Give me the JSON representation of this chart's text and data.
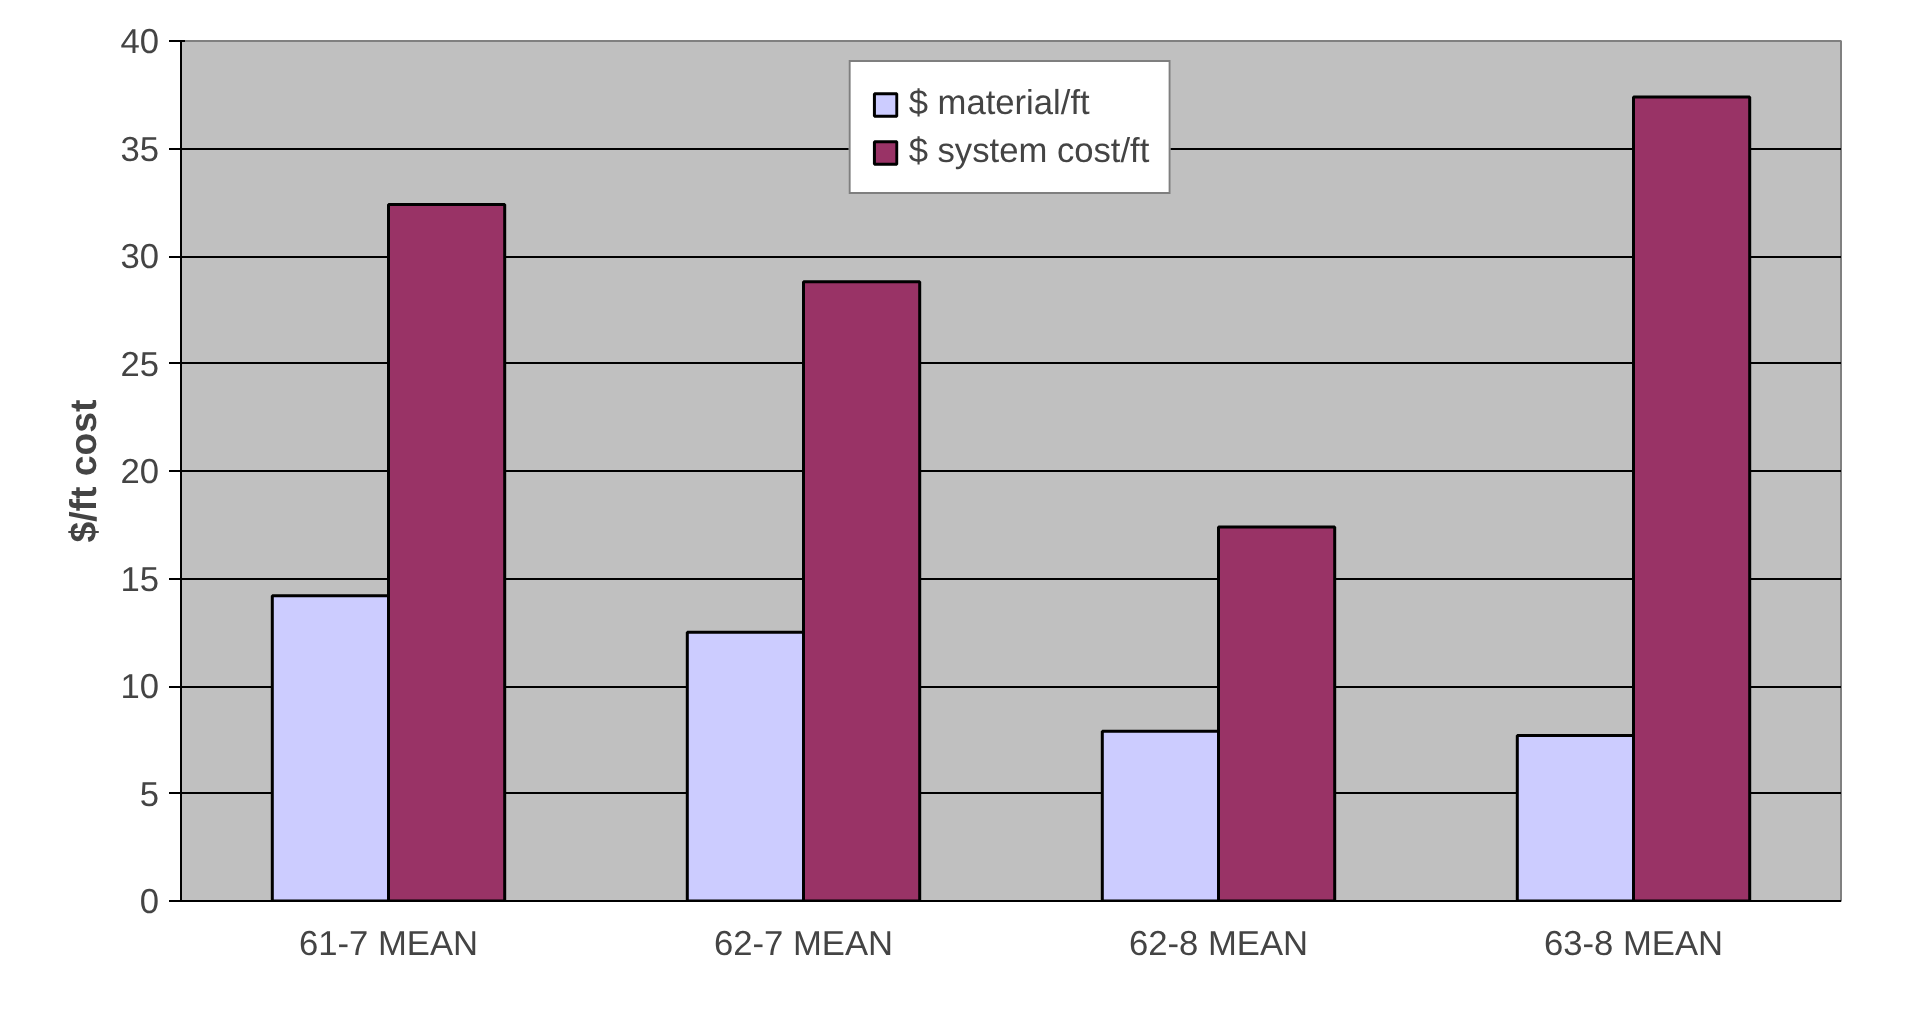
{
  "chart_data": {
    "type": "bar",
    "ylabel": "$/ft cost",
    "categories": [
      "61-7 MEAN",
      "62-7 MEAN",
      "62-8 MEAN",
      "63-8 MEAN"
    ],
    "series": [
      {
        "name": "$ material/ft",
        "color": "#ccccff",
        "values": [
          14.2,
          12.5,
          7.9,
          7.7
        ]
      },
      {
        "name": "$ system cost/ft",
        "color": "#993366",
        "values": [
          32.4,
          28.8,
          17.4,
          37.4
        ]
      }
    ],
    "ylim": [
      0,
      40
    ],
    "yticks": [
      0,
      5,
      10,
      15,
      20,
      25,
      30,
      35,
      40
    ],
    "grid": "y",
    "legend": "top"
  }
}
